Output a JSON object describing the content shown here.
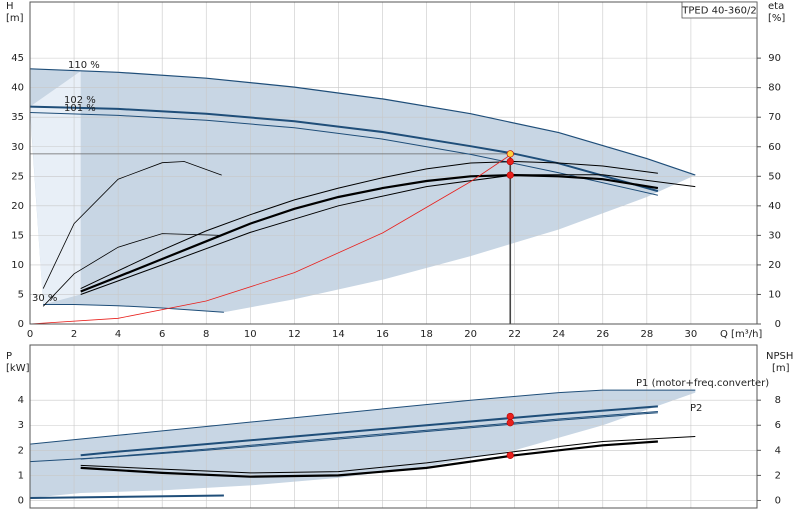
{
  "chart_data": [
    {
      "type": "line",
      "title": "TPED 40-360/2",
      "ylabel": "H",
      "yunit": "[m]",
      "y2label": "eta",
      "y2unit": "[%]",
      "xlabel": "Q [m³/h]",
      "xlim": [
        0,
        33
      ],
      "ylim": [
        0,
        54.5
      ],
      "y2lim": [
        0,
        109
      ],
      "grid": true,
      "xticks": [
        0,
        2,
        4,
        6,
        8,
        10,
        12,
        14,
        16,
        18,
        20,
        22,
        24,
        26,
        28,
        30
      ],
      "yticks": [
        0,
        5,
        10,
        15,
        20,
        25,
        30,
        35,
        40,
        45
      ],
      "y2ticks": [
        0,
        10,
        20,
        30,
        40,
        50,
        60,
        70,
        80,
        90
      ],
      "areas": [
        {
          "color": "#c8d6e4",
          "x": [
            0,
            4,
            8,
            12,
            16,
            20,
            24,
            28,
            30.2,
            28,
            24,
            20,
            16,
            12,
            8.8,
            6,
            2,
            0.6,
            0
          ],
          "values": [
            43.2,
            42.6,
            41.6,
            40.1,
            38.1,
            35.6,
            32.4,
            28,
            25.2,
            21.5,
            16,
            11.5,
            7.5,
            4.2,
            2.0,
            2.7,
            3.3,
            3.3,
            36
          ]
        },
        {
          "color": "#e8eff7",
          "x": [
            0,
            2.3,
            2.3,
            0.6
          ],
          "values": [
            36.8,
            42.8,
            5,
            3.3
          ]
        }
      ],
      "series": [
        {
          "name": "110 %",
          "color": "#1f4e79",
          "width": 1.2,
          "x": [
            0,
            4,
            8,
            12,
            16,
            20,
            24,
            28,
            30.2
          ],
          "values": [
            43.2,
            42.6,
            41.6,
            40.1,
            38.1,
            35.6,
            32.4,
            28,
            25.2
          ]
        },
        {
          "name": "102 %",
          "color": "#1f4e79",
          "width": 2,
          "x": [
            0,
            4,
            8,
            12,
            16,
            20,
            22,
            24,
            28.5
          ],
          "values": [
            36.8,
            36.4,
            35.6,
            34.3,
            32.5,
            30.1,
            28.8,
            27.2,
            22.5
          ]
        },
        {
          "name": "101 %",
          "color": "#1f4e79",
          "width": 1,
          "x": [
            0,
            4,
            8,
            12,
            16,
            20,
            24,
            28.5
          ],
          "values": [
            35.8,
            35.3,
            34.5,
            33.2,
            31.3,
            28.7,
            25.6,
            21.8
          ]
        },
        {
          "name": "30 %",
          "color": "#1f4e79",
          "width": 1,
          "x": [
            0.6,
            2,
            4,
            6,
            8.8
          ],
          "values": [
            3.3,
            3.3,
            3.1,
            2.7,
            2.0
          ]
        },
        {
          "color": "#000000",
          "width": 2.2,
          "axis": "y2",
          "x": [
            2.3,
            4,
            6,
            8,
            10,
            12,
            14,
            16,
            18,
            20,
            22,
            24,
            26,
            28.5
          ],
          "values": [
            11,
            16,
            22,
            28,
            34,
            39,
            43,
            46,
            48.4,
            50,
            50.4,
            50,
            49,
            46
          ]
        },
        {
          "color": "#000000",
          "width": 1,
          "axis": "y2",
          "x": [
            2.3,
            4,
            6,
            8,
            10,
            12,
            14,
            16,
            18,
            20,
            22,
            24,
            26,
            28.5
          ],
          "values": [
            12,
            18,
            25,
            31.5,
            37,
            42,
            46,
            49.5,
            52.5,
            54.5,
            55,
            54.5,
            53.5,
            51
          ]
        },
        {
          "color": "#000000",
          "width": 1,
          "axis": "y2",
          "x": [
            2.3,
            6,
            10,
            14,
            18,
            22,
            26,
            30.2
          ],
          "values": [
            10,
            20,
            31,
            40,
            46.5,
            50.5,
            50.5,
            46.5
          ]
        },
        {
          "color": "#000000",
          "width": 0.8,
          "axis": "y2",
          "x": [
            0.6,
            2,
            4,
            6,
            7,
            8.7
          ],
          "values": [
            12,
            34,
            49,
            54.6,
            55,
            50.4
          ]
        },
        {
          "color": "#000000",
          "width": 0.8,
          "axis": "y2",
          "x": [
            0.6,
            2,
            4,
            6,
            8.7
          ],
          "values": [
            6,
            17,
            26,
            30.6,
            30
          ]
        },
        {
          "color": "#e8201c",
          "width": 0.8,
          "x": [
            0,
            4,
            8,
            12,
            16,
            20,
            21.8
          ],
          "values": [
            0,
            0.96,
            3.9,
            8.7,
            15.4,
            24.1,
            28.6
          ]
        }
      ],
      "points": [
        {
          "color": "#ffd23f",
          "x": [
            21.8
          ],
          "values": [
            28.8
          ]
        },
        {
          "color": "#e8201c",
          "x": [
            21.8,
            21.8
          ],
          "values": [
            27.5,
            25.2
          ]
        }
      ]
    },
    {
      "type": "line",
      "ylabel": "P",
      "yunit": "[kW]",
      "y2label": "NPSH",
      "y2unit": "[m]",
      "xlim": [
        0,
        33
      ],
      "ylim": [
        -0.3,
        6.2
      ],
      "y2lim": [
        -0.6,
        12.4
      ],
      "grid": true,
      "xticks": [
        0,
        2,
        4,
        6,
        8,
        10,
        12,
        14,
        16,
        18,
        20,
        22,
        24,
        26,
        28,
        30
      ],
      "yticks": [
        0,
        1,
        2,
        3,
        4
      ],
      "y2ticks": [
        0,
        2,
        4,
        6,
        8
      ],
      "areas": [
        {
          "color": "#c8d6e4",
          "x": [
            0,
            4,
            8,
            12,
            16,
            20,
            24,
            26,
            30.2,
            30.2,
            26,
            22,
            18,
            14,
            10,
            6,
            2.3,
            0
          ],
          "values": [
            2.25,
            2.6,
            2.95,
            3.3,
            3.65,
            4.0,
            4.3,
            4.4,
            4.4,
            4.3,
            3.0,
            2.0,
            1.35,
            0.9,
            0.6,
            0.4,
            0.3,
            0.1
          ]
        }
      ],
      "series": [
        {
          "name": "P1 (motor+freq.converter)",
          "color": "#1f4e79",
          "width": 1,
          "x": [
            0,
            4,
            8,
            12,
            16,
            20,
            24,
            26,
            30.2
          ],
          "values": [
            2.25,
            2.6,
            2.95,
            3.3,
            3.65,
            4.0,
            4.3,
            4.4,
            4.4
          ]
        },
        {
          "name": "P2",
          "color": "#1f4e79",
          "width": 2,
          "x": [
            2.3,
            4,
            8,
            12,
            16,
            20,
            22,
            24,
            28.5
          ],
          "values": [
            1.8,
            1.95,
            2.25,
            2.55,
            2.85,
            3.15,
            3.3,
            3.45,
            3.75
          ]
        },
        {
          "color": "#1f4e79",
          "width": 1,
          "x": [
            2.3,
            8,
            12,
            16,
            20,
            24,
            28.5
          ],
          "values": [
            1.65,
            2.05,
            2.35,
            2.65,
            2.95,
            3.25,
            3.55
          ]
        },
        {
          "color": "#1f4e79",
          "width": 1,
          "x": [
            0,
            4,
            8,
            12,
            16,
            20,
            24,
            28.5
          ],
          "values": [
            1.55,
            1.75,
            2.0,
            2.3,
            2.6,
            2.9,
            3.2,
            3.5
          ]
        },
        {
          "color": "#000000",
          "width": 2.2,
          "axis": "y2",
          "x": [
            2.3,
            6,
            10,
            14,
            18,
            22,
            26,
            28.5
          ],
          "values": [
            2.6,
            2.2,
            1.9,
            2.0,
            2.6,
            3.6,
            4.4,
            4.7
          ]
        },
        {
          "color": "#000000",
          "width": 1,
          "axis": "y2",
          "x": [
            2.3,
            6,
            10,
            14,
            18,
            22,
            26,
            30.2
          ],
          "values": [
            2.8,
            2.5,
            2.2,
            2.3,
            3.0,
            3.9,
            4.7,
            5.1
          ]
        },
        {
          "color": "#1f4e79",
          "width": 2,
          "x": [
            0,
            8.8
          ],
          "values": [
            0.1,
            0.2
          ]
        }
      ],
      "points": [
        {
          "color": "#e8201c",
          "x": [
            21.8,
            21.8
          ],
          "values": [
            3.35,
            3.1
          ]
        },
        {
          "color": "#e8201c",
          "axis": "y2",
          "x": [
            21.8
          ],
          "values": [
            3.6
          ]
        }
      ]
    }
  ]
}
